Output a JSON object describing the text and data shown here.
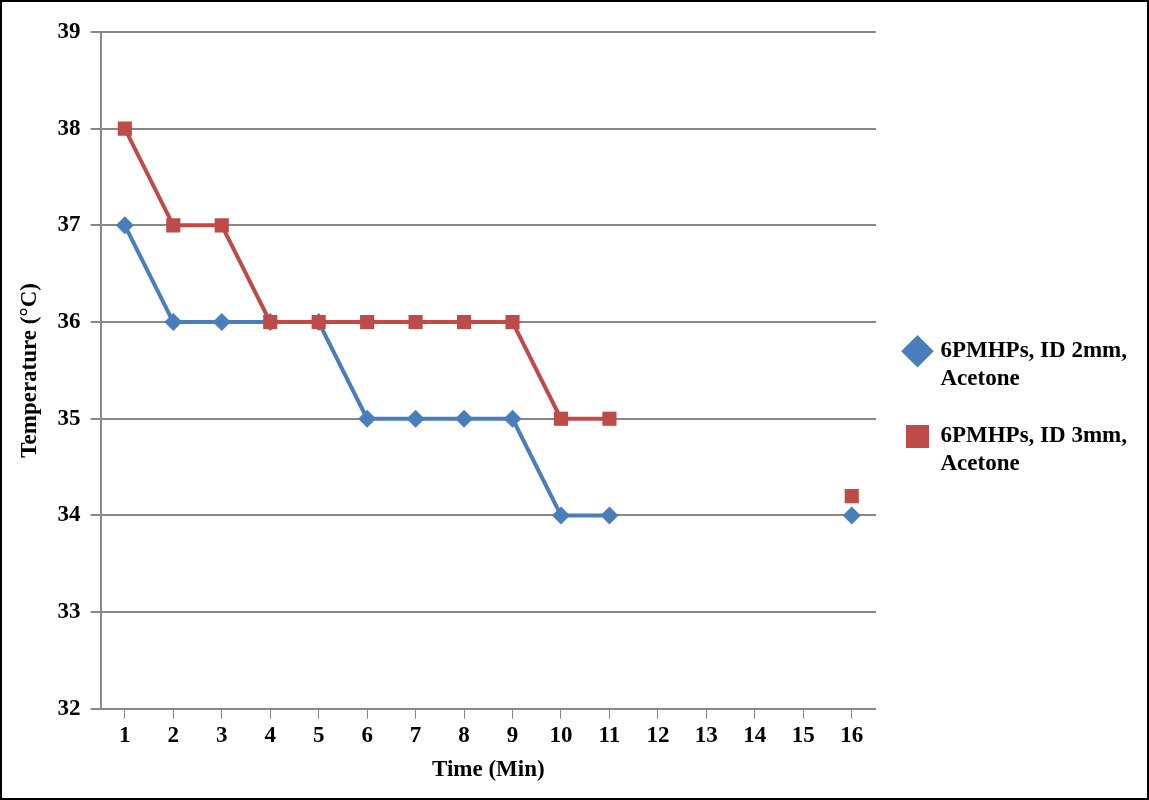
{
  "chart_data": {
    "type": "line",
    "xlabel": "Time (Min)",
    "ylabel": "Temperature (°C)",
    "x": [
      1,
      2,
      3,
      4,
      5,
      6,
      7,
      8,
      9,
      10,
      11,
      12,
      13,
      14,
      15,
      16
    ],
    "xlim": [
      0.5,
      16.5
    ],
    "xticks": [
      1,
      2,
      3,
      4,
      5,
      6,
      7,
      8,
      9,
      10,
      11,
      12,
      13,
      14,
      15,
      16
    ],
    "series": [
      {
        "name": "6PMHPs, ID 2mm, Acetone",
        "color": "#4a7ebb",
        "marker": "diamond",
        "values": [
          37,
          36,
          36,
          36,
          36,
          35,
          35,
          35,
          35,
          34,
          34,
          null,
          null,
          null,
          null,
          34
        ]
      },
      {
        "name": "6PMHPs, ID 3mm, Acetone",
        "color": "#be4b48",
        "marker": "square",
        "values": [
          38,
          37,
          37,
          36,
          36,
          36,
          36,
          36,
          36,
          35,
          35,
          null,
          null,
          null,
          null,
          34.2
        ]
      }
    ],
    "ylim": [
      32,
      39
    ],
    "yticks": [
      32,
      33,
      34,
      35,
      36,
      37,
      38,
      39
    ],
    "grid": "y",
    "legend": "right",
    "line_style": "solid"
  }
}
